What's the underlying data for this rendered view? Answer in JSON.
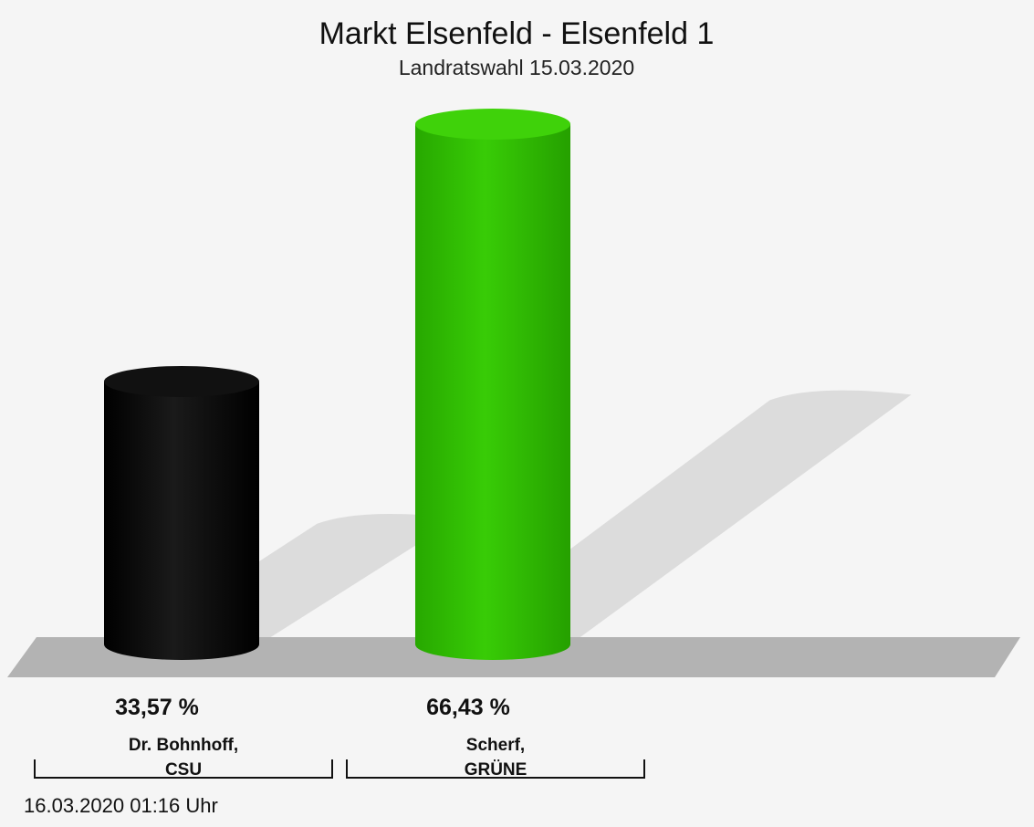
{
  "chart_data": {
    "type": "bar",
    "title": "Markt Elsenfeld - Elsenfeld 1",
    "subtitle": "Landratswahl 15.03.2020",
    "categories": [
      [
        "Dr. Bohnhoff,",
        "CSU"
      ],
      [
        "Scherf,",
        "GRÜNE"
      ]
    ],
    "values": [
      33.57,
      66.43
    ],
    "value_labels": [
      "33,57 %",
      "66,43 %"
    ],
    "colors": [
      "#0a0a0a",
      "#33c400"
    ],
    "ylim": [
      0,
      66.43
    ],
    "grid": false,
    "legend": "none"
  },
  "footer": {
    "timestamp": "16.03.2020 01:16 Uhr"
  }
}
